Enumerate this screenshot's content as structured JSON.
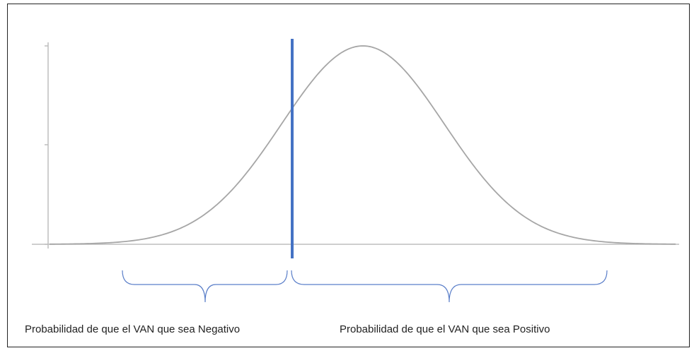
{
  "labels": {
    "negative": "Probabilidad de que el VAN que sea Negativo",
    "positive": "Probabilidad de que el VAN que sea Positivo"
  }
}
